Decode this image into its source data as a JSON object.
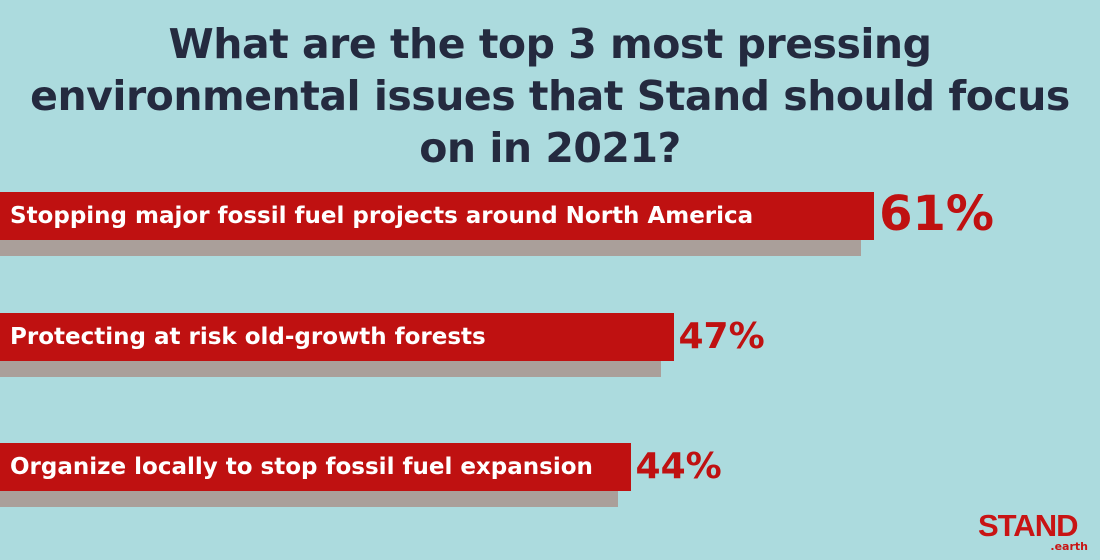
{
  "chart_data": {
    "type": "bar",
    "orientation": "horizontal",
    "title": "What are the top 3 most pressing environmental issues that Stand should focus on in 2021?",
    "categories": [
      "Stopping major fossil fuel projects around North America",
      "Protecting at risk old-growth forests",
      "Organize locally to stop fossil fuel expansion"
    ],
    "values": [
      61,
      47,
      44
    ],
    "value_labels": [
      "61%",
      "47%",
      "44%"
    ],
    "unit": "%",
    "xlim": [
      0,
      76
    ],
    "grid": false,
    "colors": {
      "bar": "#bf1111",
      "shadow": "#aa9f9a",
      "background": "#acdbde",
      "title": "#242a3f"
    }
  },
  "logo": {
    "text": "STAND",
    "subtext": ".earth"
  }
}
